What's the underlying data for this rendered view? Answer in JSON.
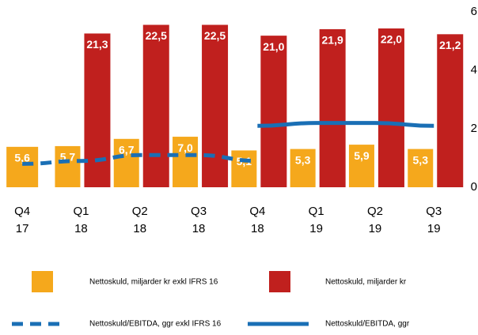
{
  "chart_data": {
    "type": "bar_line",
    "categories": [
      "Q4 17",
      "Q1 18",
      "Q2 18",
      "Q3 18",
      "Q4 18",
      "Q1 19",
      "Q2 19",
      "Q3 19"
    ],
    "ylim": [
      0,
      24.3
    ],
    "y2lim": [
      0,
      6
    ],
    "y2ticks": [
      0,
      2,
      4,
      6
    ],
    "series": [
      {
        "name": "Nettoskuld, miljarder kr exkl IFRS 16",
        "type": "bar",
        "color": "#f5a81c",
        "values": [
          5.6,
          5.7,
          6.7,
          7.0,
          5.1,
          5.3,
          5.9,
          5.3
        ],
        "value_labels": [
          "5,6",
          "5,7",
          "6,7",
          "7,0",
          "5,1",
          "5,3",
          "5,9",
          "5,3"
        ]
      },
      {
        "name": "Nettoskuld, miljarder kr",
        "type": "bar",
        "color": "#c0201e",
        "values": [
          null,
          21.3,
          22.5,
          22.5,
          21.0,
          21.9,
          22.0,
          21.2
        ],
        "value_labels": [
          null,
          "21,3",
          "22,5",
          "22,5",
          "21,0",
          "21,9",
          "22,0",
          "21,2"
        ]
      },
      {
        "name": "Nettoskuld/EBITDA, ggr exkl IFRS 16",
        "type": "line",
        "dashed": true,
        "axis": "y2",
        "color": "#1a6fb5",
        "values": [
          0.8,
          0.9,
          1.1,
          1.1,
          0.9,
          null,
          null,
          null
        ]
      },
      {
        "name": "Nettoskuld/EBITDA, ggr",
        "type": "line",
        "axis": "y2",
        "color": "#1a6fb5",
        "values": [
          null,
          null,
          null,
          null,
          2.1,
          2.2,
          2.2,
          2.1
        ]
      }
    ]
  }
}
